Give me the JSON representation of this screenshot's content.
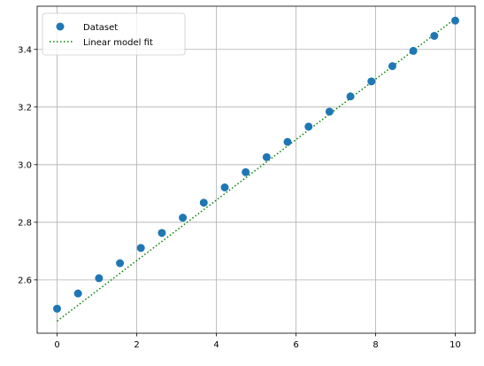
{
  "chart_data": {
    "type": "scatter",
    "title": "",
    "xlabel": "",
    "ylabel": "",
    "xlim": [
      -0.5,
      10.5
    ],
    "ylim": [
      2.415,
      3.55
    ],
    "xticks": [
      0,
      2,
      4,
      6,
      8,
      10
    ],
    "yticks": [
      2.6,
      2.8,
      3.0,
      3.2,
      3.4
    ],
    "xtick_labels": [
      "0",
      "2",
      "4",
      "6",
      "8",
      "10"
    ],
    "ytick_labels": [
      "2.6",
      "2.8",
      "3.0",
      "3.2",
      "3.4"
    ],
    "grid": true,
    "legend_position": "top-left",
    "series": [
      {
        "name": "Dataset",
        "kind": "scatter",
        "color": "#1f77b4",
        "x": [
          0,
          0.526,
          1.053,
          1.579,
          2.105,
          2.632,
          3.158,
          3.684,
          4.211,
          4.737,
          5.263,
          5.789,
          6.316,
          6.842,
          7.368,
          7.895,
          8.421,
          8.947,
          9.474,
          10
        ],
        "y": [
          2.5,
          2.553,
          2.606,
          2.658,
          2.711,
          2.763,
          2.816,
          2.868,
          2.921,
          2.974,
          3.026,
          3.079,
          3.132,
          3.184,
          3.237,
          3.289,
          3.342,
          3.395,
          3.447,
          3.5
        ]
      },
      {
        "name": "Linear model fit",
        "kind": "line",
        "style": "dotted",
        "color": "#008000",
        "x": [
          0,
          10
        ],
        "y": [
          2.457,
          3.507
        ]
      }
    ]
  }
}
